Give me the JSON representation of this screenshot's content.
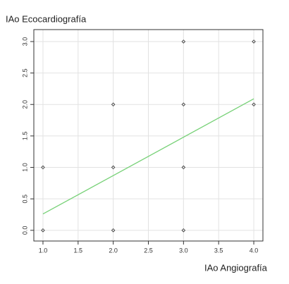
{
  "chart_data": {
    "type": "scatter",
    "y_label": "IAo Ecocardiografía",
    "x_label": "IAo Angiografía",
    "series": [
      {
        "x": [
          1,
          1,
          2,
          2,
          2,
          3,
          3,
          3,
          3,
          4,
          4
        ],
        "values": [
          0,
          1,
          0,
          1,
          2,
          0,
          1,
          2,
          3,
          2,
          3
        ],
        "color": "#333333"
      }
    ],
    "trend_line": {
      "x": [
        1,
        4
      ],
      "values": [
        0.26,
        2.09
      ],
      "color": "#77d177"
    },
    "xlim": [
      0.87,
      4.13
    ],
    "ylim": [
      -0.17,
      3.19
    ],
    "xticks": [
      {
        "value": 1,
        "label": "1.0"
      },
      {
        "value": 1.5,
        "label": "1.5"
      },
      {
        "value": 2,
        "label": "2.0"
      },
      {
        "value": 2.5,
        "label": "2.5"
      },
      {
        "value": 3,
        "label": "3.0"
      },
      {
        "value": 3.5,
        "label": "3.5"
      },
      {
        "value": 4,
        "label": "4.0"
      }
    ],
    "yticks": [
      {
        "value": 0,
        "label": "0.0"
      },
      {
        "value": 0.5,
        "label": "0.5"
      },
      {
        "value": 1,
        "label": "1.0"
      },
      {
        "value": 1.5,
        "label": "1.5"
      },
      {
        "value": 2,
        "label": "2.0"
      },
      {
        "value": 2.5,
        "label": "2.5"
      },
      {
        "value": 3,
        "label": "3.0"
      }
    ],
    "grid": true
  }
}
